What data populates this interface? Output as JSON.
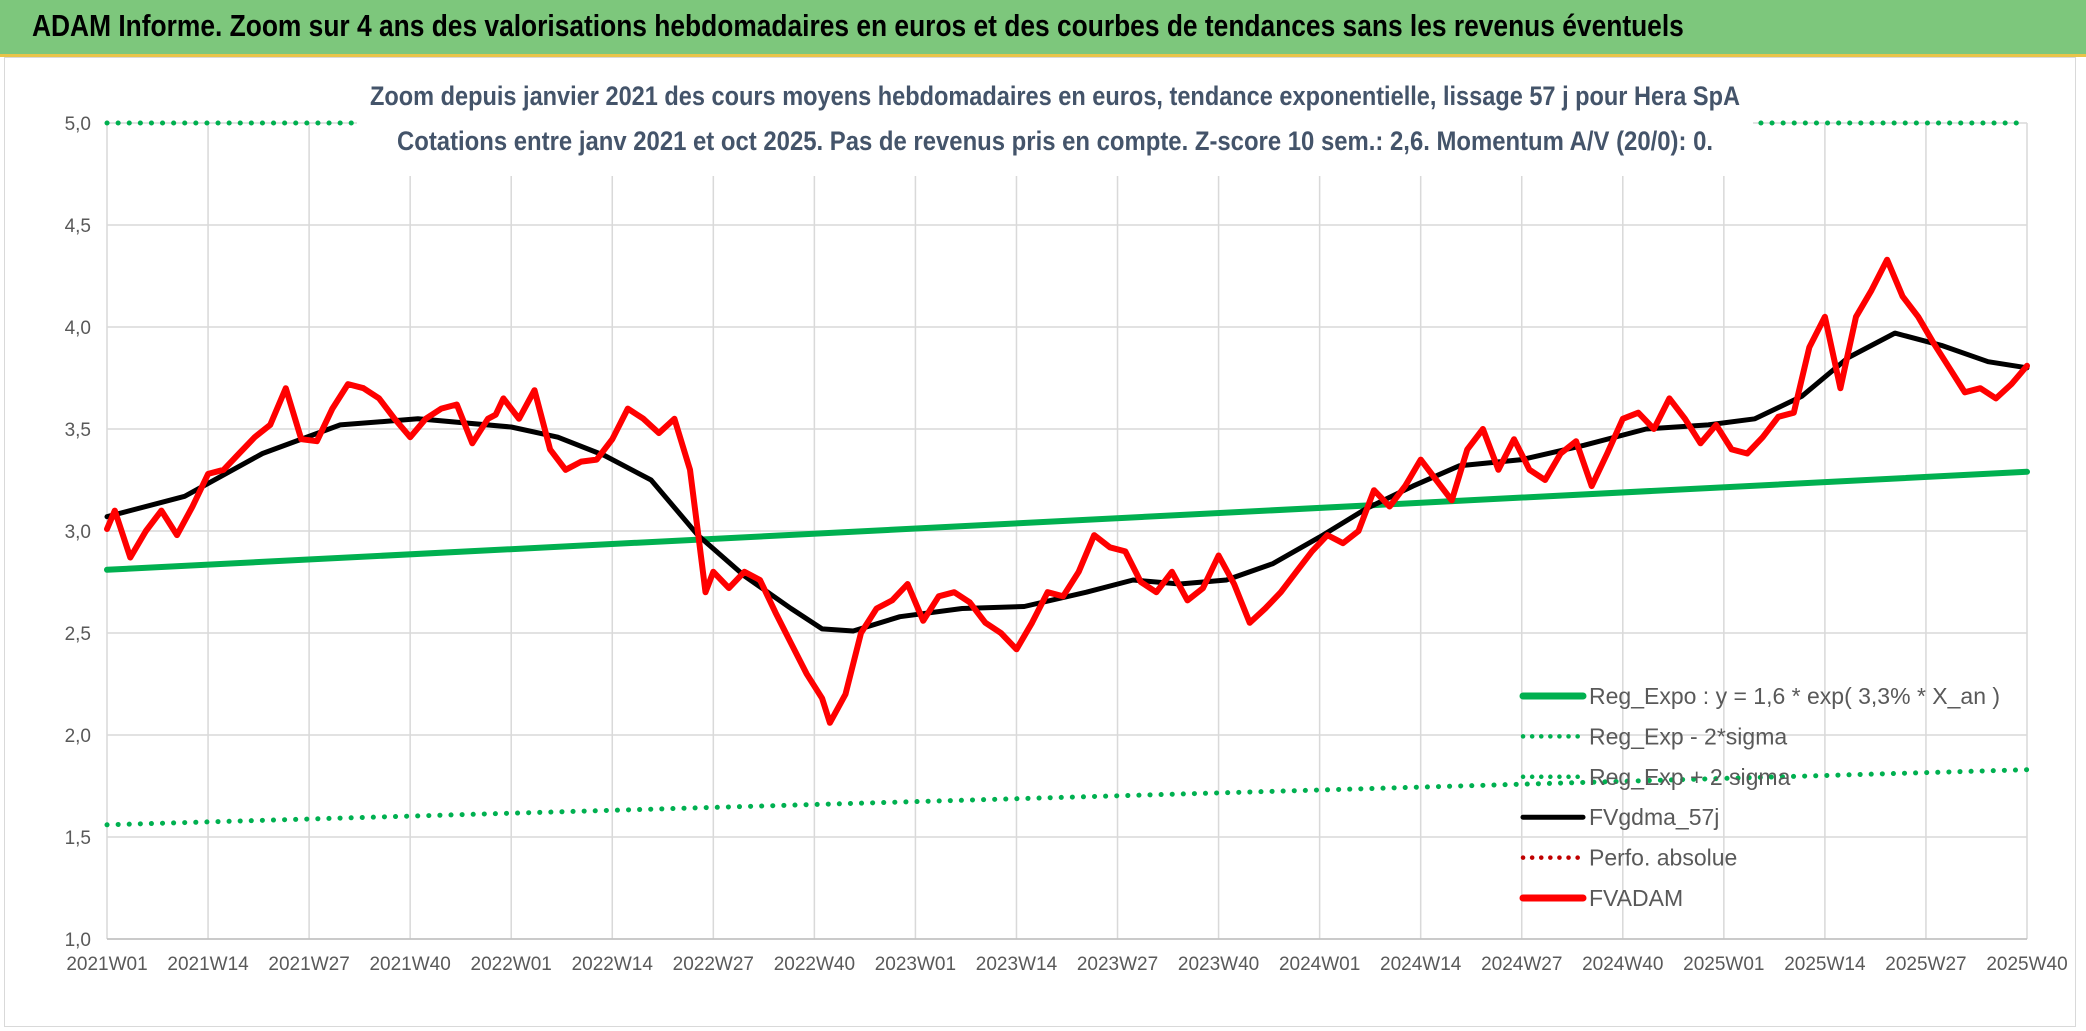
{
  "page": {
    "banner_title": "ADAM Informe. Zoom sur 4 ans des valorisations hebdomadaires en euros et des courbes de tendances sans les revenus éventuels"
  },
  "colors": {
    "banner_bg": "#7dc77c",
    "green": "#00b050",
    "red": "#ff0000",
    "black": "#000000",
    "grid": "#d9d9d9",
    "text": "#595959",
    "title": "#44546a"
  },
  "chart_data": {
    "type": "line",
    "title_line1": "Zoom depuis janvier 2021 des cours moyens hebdomadaires en euros, tendance exponentielle, lissage 57 j pour Hera SpA",
    "title_line2": "Cotations entre janv 2021 et oct 2025. Pas de revenus pris en compte. Z-score 10 sem.: 2,6. Momentum A/V (20/0): 0.",
    "ylim": [
      1.0,
      5.0
    ],
    "y_ticks": [
      1.0,
      1.5,
      2.0,
      2.5,
      3.0,
      3.5,
      4.0,
      4.5,
      5.0
    ],
    "y_tick_labels": [
      "1,0",
      "1,5",
      "2,0",
      "2,5",
      "3,0",
      "3,5",
      "4,0",
      "4,5",
      "5,0"
    ],
    "x_range": [
      0,
      247
    ],
    "x_tick_positions": [
      0,
      13,
      26,
      39,
      52,
      65,
      78,
      91,
      104,
      117,
      130,
      143,
      156,
      169,
      182,
      195,
      208,
      221,
      234,
      247
    ],
    "x_tick_labels": [
      "2021W01",
      "2021W14",
      "2021W27",
      "2021W40",
      "2022W01",
      "2022W14",
      "2022W27",
      "2022W40",
      "2023W01",
      "2023W14",
      "2023W27",
      "2023W40",
      "2024W01",
      "2024W14",
      "2024W27",
      "2024W40",
      "2025W01",
      "2025W14",
      "2025W27",
      "2025W40"
    ],
    "legend_position": "bottom-right",
    "legend": [
      {
        "label": "Reg_Expo : y = 1,6 * exp( 3,3% *  X_an )",
        "style": "solid",
        "color": "#00b050"
      },
      {
        "label": "Reg_Exp - 2*sigma",
        "style": "dotted",
        "color": "#00b050"
      },
      {
        "label": "Reg_Exp + 2 sigma",
        "style": "dotted",
        "color": "#00b050"
      },
      {
        "label": "FVgdma_57j",
        "style": "solid",
        "color": "#000000"
      },
      {
        "label": "Perfo. absolue",
        "style": "dotted",
        "color": "#c00000"
      },
      {
        "label": "FVADAM",
        "style": "solid",
        "color": "#ff0000"
      }
    ],
    "series": [
      {
        "name": "Reg_Expo",
        "style": "solid",
        "color": "#00b050",
        "x": [
          0,
          247
        ],
        "y": [
          2.81,
          3.29
        ]
      },
      {
        "name": "Reg_Exp - 2*sigma",
        "style": "dotted",
        "color": "#00b050",
        "x": [
          0,
          247
        ],
        "y": [
          1.56,
          1.83
        ]
      },
      {
        "name": "Reg_Exp + 2 sigma",
        "style": "dotted",
        "color": "#00b050",
        "x": [
          0,
          247
        ],
        "y": [
          5.0,
          5.0
        ]
      },
      {
        "name": "FVgdma_57j",
        "style": "solid",
        "color": "#000000",
        "x": [
          0,
          10,
          20,
          30,
          40,
          52,
          58,
          64,
          70,
          76,
          82,
          88,
          92,
          96,
          102,
          110,
          118,
          126,
          132,
          138,
          144,
          150,
          156,
          162,
          168,
          174,
          182,
          190,
          198,
          206,
          212,
          218,
          224,
          230,
          236,
          242,
          247
        ],
        "y": [
          3.07,
          3.17,
          3.38,
          3.52,
          3.55,
          3.51,
          3.46,
          3.37,
          3.25,
          2.98,
          2.78,
          2.62,
          2.52,
          2.51,
          2.58,
          2.62,
          2.63,
          2.7,
          2.76,
          2.74,
          2.76,
          2.84,
          2.97,
          3.11,
          3.22,
          3.32,
          3.35,
          3.42,
          3.5,
          3.52,
          3.55,
          3.66,
          3.85,
          3.97,
          3.91,
          3.83,
          3.8
        ]
      },
      {
        "name": "FVADAM",
        "style": "solid",
        "color": "#ff0000",
        "x": [
          0,
          1,
          3,
          5,
          7,
          9,
          11,
          13,
          15,
          17,
          19,
          21,
          23,
          25,
          27,
          29,
          31,
          33,
          35,
          37,
          39,
          41,
          43,
          45,
          47,
          49,
          50,
          51,
          53,
          55,
          57,
          59,
          61,
          63,
          65,
          67,
          69,
          71,
          73,
          75,
          76,
          77,
          78,
          80,
          82,
          84,
          86,
          88,
          90,
          92,
          93,
          95,
          97,
          99,
          101,
          103,
          105,
          107,
          109,
          111,
          113,
          115,
          117,
          119,
          121,
          123,
          125,
          127,
          129,
          131,
          133,
          135,
          137,
          139,
          141,
          143,
          145,
          147,
          149,
          151,
          153,
          155,
          157,
          159,
          161,
          163,
          165,
          167,
          169,
          171,
          173,
          175,
          177,
          179,
          181,
          183,
          185,
          187,
          189,
          191,
          193,
          195,
          197,
          199,
          201,
          203,
          205,
          207,
          209,
          211,
          213,
          215,
          217,
          219,
          221,
          223,
          225,
          227,
          229,
          231,
          233,
          235,
          237,
          239,
          241,
          243,
          245,
          247
        ],
        "y": [
          3.01,
          3.1,
          2.87,
          3.0,
          3.1,
          2.98,
          3.12,
          3.28,
          3.3,
          3.38,
          3.46,
          3.52,
          3.7,
          3.45,
          3.44,
          3.6,
          3.72,
          3.7,
          3.65,
          3.55,
          3.46,
          3.55,
          3.6,
          3.62,
          3.43,
          3.55,
          3.57,
          3.65,
          3.55,
          3.69,
          3.4,
          3.3,
          3.34,
          3.35,
          3.45,
          3.6,
          3.55,
          3.48,
          3.55,
          3.3,
          3.0,
          2.7,
          2.8,
          2.72,
          2.8,
          2.76,
          2.6,
          2.45,
          2.3,
          2.18,
          2.06,
          2.2,
          2.5,
          2.62,
          2.66,
          2.74,
          2.56,
          2.68,
          2.7,
          2.65,
          2.55,
          2.5,
          2.42,
          2.55,
          2.7,
          2.68,
          2.8,
          2.98,
          2.92,
          2.9,
          2.75,
          2.7,
          2.8,
          2.66,
          2.72,
          2.88,
          2.74,
          2.55,
          2.62,
          2.7,
          2.8,
          2.9,
          2.98,
          2.94,
          3.0,
          3.2,
          3.12,
          3.22,
          3.35,
          3.25,
          3.15,
          3.4,
          3.5,
          3.3,
          3.45,
          3.3,
          3.25,
          3.38,
          3.44,
          3.22,
          3.38,
          3.55,
          3.58,
          3.5,
          3.65,
          3.55,
          3.43,
          3.52,
          3.4,
          3.38,
          3.46,
          3.56,
          3.58,
          3.9,
          4.05,
          3.7,
          4.05,
          4.18,
          4.33,
          4.15,
          4.05,
          3.92,
          3.8,
          3.68,
          3.7,
          3.65,
          3.72,
          3.81
        ]
      },
      {
        "name": "Perfo. absolue",
        "style": "dotted",
        "color": "#c00000",
        "x": [],
        "y": []
      }
    ]
  }
}
